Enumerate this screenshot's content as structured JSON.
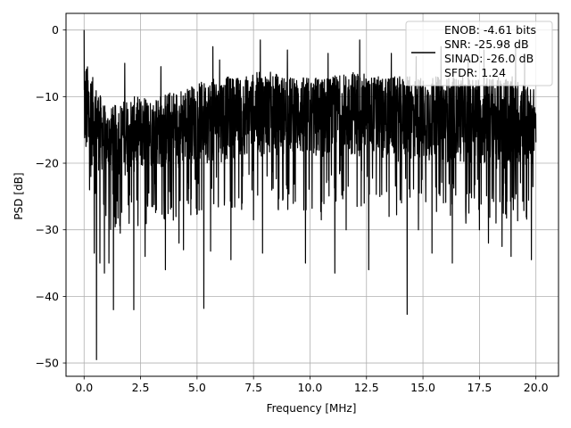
{
  "chart_data": {
    "type": "line",
    "title": "",
    "xlabel": "Frequency [MHz]",
    "ylabel": "PSD [dB]",
    "xlim": [
      -0.8,
      21.0
    ],
    "ylim": [
      -52,
      2.5
    ],
    "xticks": [
      0.0,
      2.5,
      5.0,
      7.5,
      10.0,
      12.5,
      15.0,
      17.5,
      20.0
    ],
    "xtick_labels": [
      "0.0",
      "2.5",
      "5.0",
      "7.5",
      "10.0",
      "12.5",
      "15.0",
      "17.5",
      "20.0"
    ],
    "yticks": [
      0,
      -10,
      -20,
      -30,
      -40,
      -50
    ],
    "ytick_labels": [
      "0",
      "−10",
      "−20",
      "−30",
      "−40",
      "−50"
    ],
    "grid": true,
    "legend_position": "top-right",
    "series": [
      {
        "name": "ENOB: -4.61 bits\nSNR: -25.98 dB\nSINAD: -26.0 dB\nSFDR: 1.24",
        "color": "#000000",
        "x_range": [
          0.0,
          20.0
        ],
        "points": [
          [
            0.0,
            0.0
          ],
          [
            0.05,
            -13.0
          ],
          [
            0.1,
            -6.0
          ],
          [
            0.2,
            -16.0
          ],
          [
            0.3,
            -22.0
          ],
          [
            0.45,
            -33.5
          ],
          [
            0.55,
            -49.5
          ],
          [
            0.7,
            -35.0
          ],
          [
            0.9,
            -36.5
          ],
          [
            1.1,
            -35.0
          ],
          [
            1.3,
            -42.0
          ],
          [
            1.6,
            -30.5
          ],
          [
            2.2,
            -42.0
          ],
          [
            2.7,
            -34.0
          ],
          [
            3.2,
            -27.0
          ],
          [
            3.6,
            -36.0
          ],
          [
            4.2,
            -32.0
          ],
          [
            4.4,
            -33.0
          ],
          [
            5.2,
            -27.0
          ],
          [
            5.3,
            -41.8
          ],
          [
            5.6,
            -33.2
          ],
          [
            6.5,
            -34.5
          ],
          [
            7.0,
            -26.0
          ],
          [
            7.5,
            -28.5
          ],
          [
            7.9,
            -33.5
          ],
          [
            8.6,
            -27.0
          ],
          [
            9.0,
            -26.0
          ],
          [
            9.8,
            -35.0
          ],
          [
            10.5,
            -28.5
          ],
          [
            11.1,
            -36.5
          ],
          [
            11.6,
            -30.0
          ],
          [
            12.4,
            -26.0
          ],
          [
            12.6,
            -36.0
          ],
          [
            13.5,
            -28.0
          ],
          [
            14.3,
            -42.7
          ],
          [
            14.8,
            -30.0
          ],
          [
            15.4,
            -33.5
          ],
          [
            16.3,
            -35.0
          ],
          [
            16.9,
            -29.0
          ],
          [
            17.5,
            -30.0
          ],
          [
            17.9,
            -32.0
          ],
          [
            18.5,
            -32.5
          ],
          [
            18.9,
            -34.0
          ],
          [
            19.0,
            -27.0
          ],
          [
            19.8,
            -34.5
          ],
          [
            1.8,
            -5.0
          ],
          [
            3.4,
            -5.5
          ],
          [
            5.7,
            -2.5
          ],
          [
            6.0,
            -4.5
          ],
          [
            7.8,
            -1.5
          ],
          [
            9.0,
            -3.0
          ],
          [
            10.8,
            -3.5
          ],
          [
            12.2,
            -1.5
          ],
          [
            13.6,
            -3.5
          ],
          [
            14.7,
            -4.0
          ],
          [
            15.8,
            -2.5
          ],
          [
            17.0,
            -4.5
          ],
          [
            17.7,
            -3.0
          ],
          [
            19.1,
            -2.0
          ],
          [
            19.5,
            -4.5
          ]
        ],
        "envelope": {
          "x": [
            0,
            1,
            2,
            3,
            4,
            5,
            6,
            7,
            8,
            9,
            10,
            11,
            12,
            13,
            14,
            15,
            16,
            17,
            18,
            19,
            20
          ],
          "upper": [
            0,
            -8,
            -6,
            -6,
            -5,
            -4,
            -3,
            -3,
            -2,
            -3,
            -3,
            -3,
            -2,
            -3,
            -3,
            -3,
            -3,
            -3,
            -3,
            -3,
            -5
          ],
          "lower": [
            -22,
            -24,
            -24,
            -23,
            -23,
            -22,
            -22,
            -21,
            -21,
            -21,
            -22,
            -21,
            -21,
            -21,
            -22,
            -22,
            -22,
            -22,
            -23,
            -23,
            -22
          ]
        }
      }
    ]
  }
}
